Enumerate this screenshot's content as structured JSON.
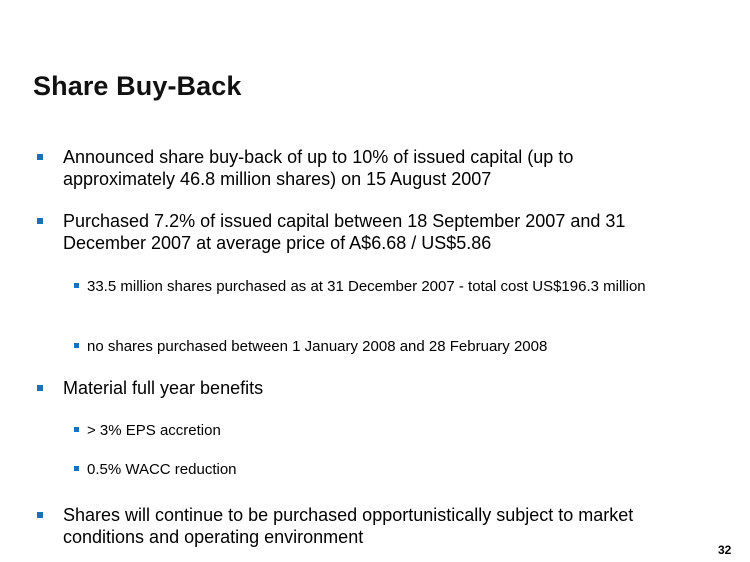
{
  "slide": {
    "title": "Share Buy-Back",
    "bullets": [
      {
        "text": "Announced share buy-back of up to 10% of issued capital (up to approximately 46.8 million shares) on 15 August 2007"
      },
      {
        "text": "Purchased 7.2% of issued capital between 18 September 2007 and 31 December 2007 at average price of A$6.68 / US$5.86"
      },
      {
        "text": "33.5 million shares purchased as at 31 December 2007 - total cost US$196.3 million"
      },
      {
        "text": "no shares purchased between 1 January 2008 and 28 February 2008"
      },
      {
        "text": "Material full year benefits"
      },
      {
        "text": "> 3% EPS accretion"
      },
      {
        "text": "0.5% WACC reduction"
      },
      {
        "text": "Shares will continue to be purchased opportunistically subject to market conditions and operating environment"
      }
    ],
    "page_number": "32",
    "colors": {
      "bullet_marker": "#1f6fb8",
      "text": "#000000"
    }
  }
}
